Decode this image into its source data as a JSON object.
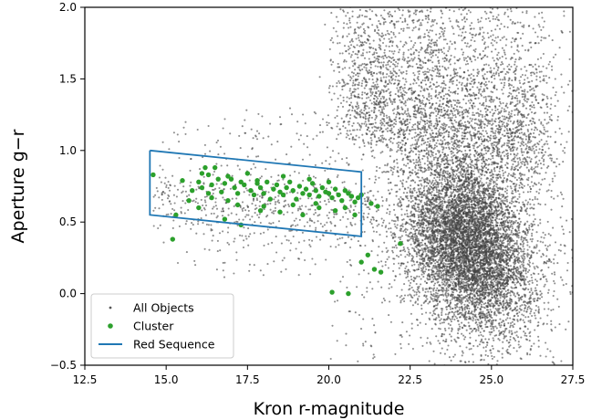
{
  "chart_data": {
    "type": "scatter",
    "xlabel": "Kron r-magnitude",
    "ylabel": "Aperture g−r",
    "xlim": [
      12.5,
      27.5
    ],
    "ylim": [
      -0.5,
      2.0
    ],
    "xticks": [
      12.5,
      15.0,
      17.5,
      20.0,
      22.5,
      25.0,
      27.5
    ],
    "xtick_labels": [
      "12.5",
      "15.0",
      "17.5",
      "20.0",
      "22.5",
      "25.0",
      "27.5"
    ],
    "yticks": [
      -0.5,
      0.0,
      0.5,
      1.0,
      1.5,
      2.0
    ],
    "ytick_labels": [
      "−0.5",
      "0.0",
      "0.5",
      "1.0",
      "1.5",
      "2.0"
    ],
    "grid": false,
    "legend_position": "lower-left",
    "legend": [
      {
        "label": "All Objects",
        "marker": "small-point",
        "color": "#555555"
      },
      {
        "label": "Cluster",
        "marker": "point",
        "color": "#2ca02c"
      },
      {
        "label": "Red Sequence",
        "marker": "line",
        "color": "#1f77b4"
      }
    ],
    "series": [
      {
        "name": "All Objects",
        "kind": "scatter",
        "color": "#444444",
        "approx_count": 12000,
        "distribution": {
          "dense_core": {
            "x_center": 24.3,
            "y_center": 0.35,
            "x_spread": 1.0,
            "y_spread": 0.3
          },
          "upper_plume": {
            "x_range": [
              20.5,
              26.5
            ],
            "y_range": [
              0.9,
              2.0
            ]
          },
          "red_sequence_band": {
            "x_range": [
              14.5,
              21.5
            ],
            "y_center": 0.65
          }
        }
      },
      {
        "name": "Cluster",
        "kind": "scatter",
        "color": "#2ca02c",
        "points": [
          [
            14.6,
            0.83
          ],
          [
            15.3,
            0.55
          ],
          [
            15.2,
            0.38
          ],
          [
            15.5,
            0.79
          ],
          [
            15.8,
            0.72
          ],
          [
            16.0,
            0.78
          ],
          [
            16.1,
            0.74
          ],
          [
            16.2,
            0.88
          ],
          [
            16.3,
            0.83
          ],
          [
            16.3,
            0.7
          ],
          [
            16.4,
            0.76
          ],
          [
            16.5,
            0.88
          ],
          [
            16.6,
            0.8
          ],
          [
            16.7,
            0.71
          ],
          [
            16.8,
            0.77
          ],
          [
            16.9,
            0.65
          ],
          [
            17.0,
            0.8
          ],
          [
            17.1,
            0.74
          ],
          [
            17.2,
            0.7
          ],
          [
            17.3,
            0.78
          ],
          [
            17.4,
            0.76
          ],
          [
            17.5,
            0.84
          ],
          [
            17.6,
            0.72
          ],
          [
            17.7,
            0.69
          ],
          [
            17.8,
            0.77
          ],
          [
            17.9,
            0.74
          ],
          [
            18.0,
            0.7
          ],
          [
            18.1,
            0.78
          ],
          [
            18.2,
            0.66
          ],
          [
            18.3,
            0.73
          ],
          [
            18.4,
            0.76
          ],
          [
            18.5,
            0.71
          ],
          [
            18.6,
            0.69
          ],
          [
            18.7,
            0.74
          ],
          [
            18.8,
            0.78
          ],
          [
            18.9,
            0.72
          ],
          [
            19.0,
            0.66
          ],
          [
            19.1,
            0.75
          ],
          [
            19.2,
            0.7
          ],
          [
            19.3,
            0.73
          ],
          [
            19.4,
            0.69
          ],
          [
            19.5,
            0.77
          ],
          [
            19.6,
            0.72
          ],
          [
            19.7,
            0.68
          ],
          [
            19.8,
            0.74
          ],
          [
            19.9,
            0.71
          ],
          [
            20.0,
            0.7
          ],
          [
            20.1,
            0.67
          ],
          [
            20.2,
            0.73
          ],
          [
            20.3,
            0.69
          ],
          [
            20.4,
            0.65
          ],
          [
            20.5,
            0.72
          ],
          [
            20.6,
            0.7
          ],
          [
            20.7,
            0.68
          ],
          [
            20.8,
            0.64
          ],
          [
            20.9,
            0.67
          ],
          [
            21.0,
            0.69
          ],
          [
            21.3,
            0.63
          ],
          [
            21.5,
            0.61
          ],
          [
            16.0,
            0.6
          ],
          [
            16.8,
            0.52
          ],
          [
            17.3,
            0.48
          ],
          [
            17.9,
            0.58
          ],
          [
            18.5,
            0.57
          ],
          [
            19.2,
            0.55
          ],
          [
            19.7,
            0.6
          ],
          [
            20.2,
            0.58
          ],
          [
            20.8,
            0.55
          ],
          [
            15.7,
            0.65
          ],
          [
            16.4,
            0.67
          ],
          [
            17.2,
            0.62
          ],
          [
            18.0,
            0.61
          ],
          [
            18.9,
            0.62
          ],
          [
            19.6,
            0.63
          ],
          [
            20.5,
            0.6
          ],
          [
            21.2,
            0.27
          ],
          [
            21.4,
            0.17
          ],
          [
            21.6,
            0.15
          ],
          [
            22.2,
            0.35
          ],
          [
            20.1,
            0.01
          ],
          [
            20.6,
            0.0
          ],
          [
            21.0,
            0.22
          ],
          [
            20.0,
            0.78
          ],
          [
            19.4,
            0.8
          ],
          [
            18.6,
            0.82
          ],
          [
            17.8,
            0.79
          ],
          [
            16.9,
            0.82
          ],
          [
            16.1,
            0.84
          ]
        ]
      },
      {
        "name": "Red Sequence",
        "kind": "polygon",
        "color": "#1f77b4",
        "vertices": [
          [
            14.5,
            1.0
          ],
          [
            21.0,
            0.85
          ],
          [
            21.0,
            0.4
          ],
          [
            14.5,
            0.55
          ],
          [
            14.5,
            1.0
          ]
        ]
      }
    ]
  }
}
